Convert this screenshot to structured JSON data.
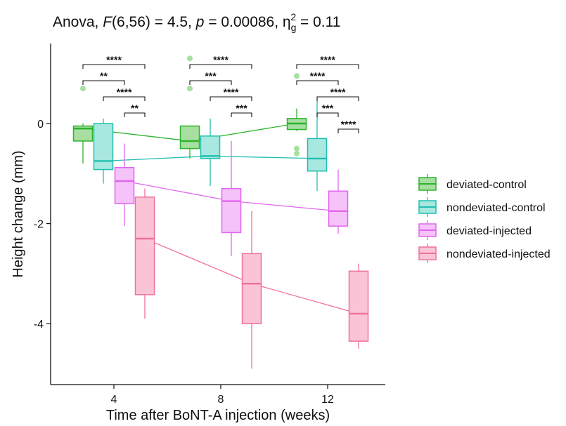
{
  "chart_data": {
    "type": "boxplot",
    "title": {
      "prefix": "Anova, ",
      "stat": "F",
      "df": "(6,56) = 4.5, ",
      "p_sym": "p",
      "p_val": " = 0.00086, ",
      "eta": "η",
      "eta_sub": "g",
      "eta_sup": "2",
      "eta_val": " = 0.11"
    },
    "xlabel": "Time after BoNT-A injection (weeks)",
    "ylabel": "Height change (mm)",
    "categories": [
      "4",
      "8",
      "12"
    ],
    "ylim": [
      -5.2,
      1.6
    ],
    "yticks": [
      -4,
      -2,
      0
    ],
    "ytick_labels": [
      "-4",
      "-2",
      "0"
    ],
    "grid": false,
    "legend_position": "right",
    "series": [
      {
        "name": "deviated-control",
        "stroke": "#2db32d",
        "fill": "#a6dfa0",
        "boxes": [
          {
            "min": -0.8,
            "q1": -0.35,
            "median": -0.1,
            "q3": -0.05,
            "max": 0.0,
            "outliers": [
              0.7
            ]
          },
          {
            "min": -0.7,
            "q1": -0.5,
            "median": -0.35,
            "q3": -0.05,
            "max": -0.05,
            "outliers": [
              1.3,
              0.7
            ]
          },
          {
            "min": -0.15,
            "q1": -0.12,
            "median": 0.0,
            "q3": 0.1,
            "max": 0.3,
            "outliers": [
              0.95,
              -0.5,
              -0.6
            ]
          }
        ]
      },
      {
        "name": "nondeviated-control",
        "stroke": "#1fbfb0",
        "fill": "#a8e8e0",
        "boxes": [
          {
            "min": -1.2,
            "q1": -0.92,
            "median": -0.75,
            "q3": 0.0,
            "max": 0.1,
            "outliers": []
          },
          {
            "min": -1.25,
            "q1": -0.7,
            "median": -0.65,
            "q3": -0.25,
            "max": 0.1,
            "outliers": []
          },
          {
            "min": -1.35,
            "q1": -0.95,
            "median": -0.7,
            "q3": -0.3,
            "max": 0.45,
            "outliers": []
          }
        ]
      },
      {
        "name": "deviated-injected",
        "stroke": "#e066ee",
        "fill": "#f5c2fa",
        "boxes": [
          {
            "min": -2.05,
            "q1": -1.6,
            "median": -1.15,
            "q3": -0.88,
            "max": -0.4,
            "outliers": []
          },
          {
            "min": -2.65,
            "q1": -2.18,
            "median": -1.55,
            "q3": -1.3,
            "max": -0.35,
            "outliers": []
          },
          {
            "min": -2.2,
            "q1": -2.05,
            "median": -1.75,
            "q3": -1.35,
            "max": -0.92,
            "outliers": []
          }
        ]
      },
      {
        "name": "nondeviated-injected",
        "stroke": "#f0709a",
        "fill": "#fac4d6",
        "boxes": [
          {
            "min": -3.9,
            "q1": -3.42,
            "median": -2.3,
            "q3": -1.47,
            "max": -1.3,
            "outliers": []
          },
          {
            "min": -4.9,
            "q1": -4.0,
            "median": -3.2,
            "q3": -2.6,
            "max": -1.75,
            "outliers": []
          },
          {
            "min": -4.5,
            "q1": -4.35,
            "median": -3.8,
            "q3": -2.95,
            "max": -2.8,
            "outliers": []
          }
        ]
      }
    ],
    "significance": [
      {
        "category": 0,
        "from": 0,
        "to": 3,
        "label": "****"
      },
      {
        "category": 0,
        "from": 0,
        "to": 2,
        "label": "**"
      },
      {
        "category": 0,
        "from": 1,
        "to": 3,
        "label": "****"
      },
      {
        "category": 0,
        "from": 2,
        "to": 3,
        "label": "**"
      },
      {
        "category": 1,
        "from": 0,
        "to": 3,
        "label": "****"
      },
      {
        "category": 1,
        "from": 0,
        "to": 2,
        "label": "***"
      },
      {
        "category": 1,
        "from": 1,
        "to": 3,
        "label": "****"
      },
      {
        "category": 1,
        "from": 2,
        "to": 3,
        "label": "***"
      },
      {
        "category": 2,
        "from": 0,
        "to": 3,
        "label": "****"
      },
      {
        "category": 2,
        "from": 0,
        "to": 2,
        "label": "****"
      },
      {
        "category": 2,
        "from": 1,
        "to": 3,
        "label": "****"
      },
      {
        "category": 2,
        "from": 1,
        "to": 2,
        "label": "***"
      },
      {
        "category": 2,
        "from": 2,
        "to": 3,
        "label": "****"
      }
    ]
  }
}
